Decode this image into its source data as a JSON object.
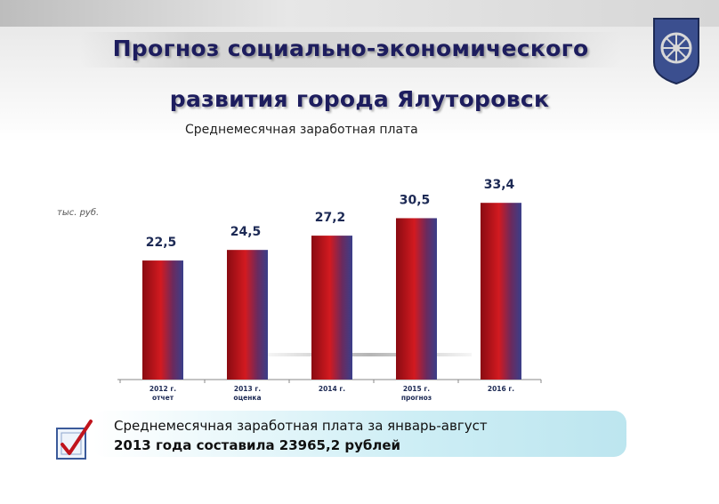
{
  "header": {
    "title_line1": "Прогноз социально-экономического",
    "title_line2": "развития города Ялуторовск",
    "crest_icon": "city-crest-wheel-icon"
  },
  "chart_data": {
    "type": "bar",
    "title": "Среднемесячная заработная плата",
    "ylabel": "тыс. руб.",
    "xlabel": "",
    "categories": [
      [
        "2012 г.",
        "отчет"
      ],
      [
        "2013 г.",
        "оценка"
      ],
      [
        "2014 г.",
        ""
      ],
      [
        "2015 г.",
        "прогноз"
      ],
      [
        "2016 г.",
        ""
      ]
    ],
    "values": [
      22.5,
      24.5,
      27.2,
      30.5,
      33.4
    ],
    "value_labels": [
      "22,5",
      "24,5",
      "27,2",
      "30,5",
      "33,4"
    ],
    "ylim": [
      0,
      42
    ],
    "grid": false,
    "legend": "none",
    "bar_colors": [
      "#8a0b12",
      "#d21a20",
      "#6a2a5e",
      "#3a3f8a"
    ]
  },
  "note": {
    "line1": "Среднемесячная  заработная  плата  за  январь-август",
    "line2": "2013 года составила  23965,2 рублей",
    "icon": "checkbox-check-icon"
  },
  "colors": {
    "title": "#1d1d5e",
    "note_bg": "#c6ebf2"
  }
}
